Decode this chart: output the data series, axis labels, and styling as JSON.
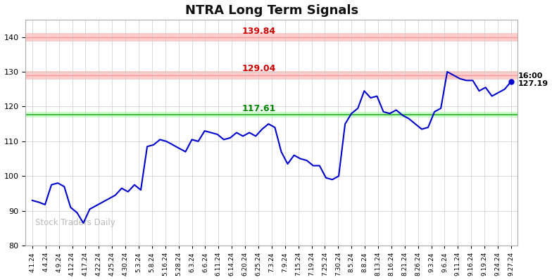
{
  "title": "NTRA Long Term Signals",
  "watermark": "Stock Traders Daily",
  "hline_green": 117.61,
  "hline_red1": 129.04,
  "hline_red2": 139.84,
  "line_color": "#0000cc",
  "last_price": 127.19,
  "last_time": "16:00",
  "ylim": [
    80,
    145
  ],
  "yticks": [
    80,
    90,
    100,
    110,
    120,
    130,
    140
  ],
  "band_half_red": 1.2,
  "band_half_green": 0.8,
  "x_labels": [
    "4.1.24",
    "4.4.24",
    "4.9.24",
    "4.12.24",
    "4.17.24",
    "4.22.24",
    "4.25.24",
    "4.30.24",
    "5.3.24",
    "5.8.24",
    "5.16.24",
    "5.28.24",
    "6.3.24",
    "6.6.24",
    "6.11.24",
    "6.14.24",
    "6.20.24",
    "6.25.24",
    "7.3.24",
    "7.9.24",
    "7.15.24",
    "7.19.24",
    "7.25.24",
    "7.30.24",
    "8.5.24",
    "8.8.24",
    "8.13.24",
    "8.16.24",
    "8.21.24",
    "8.26.24",
    "9.3.24",
    "9.6.24",
    "9.11.24",
    "9.16.24",
    "9.19.24",
    "9.24.24",
    "9.27.24"
  ],
  "prices_detailed": [
    93.0,
    92.5,
    91.8,
    97.5,
    98.0,
    97.0,
    91.0,
    89.5,
    86.5,
    90.5,
    91.5,
    92.5,
    93.5,
    94.5,
    96.5,
    95.5,
    97.5,
    96.0,
    108.5,
    109.0,
    110.5,
    110.0,
    109.0,
    108.0,
    107.0,
    110.5,
    110.0,
    113.0,
    112.5,
    112.0,
    110.5,
    111.0,
    112.5,
    111.5,
    112.5,
    111.5,
    113.5,
    115.0,
    114.0,
    107.0,
    103.5,
    106.0,
    105.0,
    104.5,
    103.0,
    103.0,
    99.5,
    99.0,
    100.0,
    115.0,
    118.0,
    119.5,
    124.5,
    122.5,
    123.0,
    118.5,
    118.0,
    119.0,
    117.5,
    116.5,
    115.0,
    113.5,
    114.0,
    118.5,
    119.5,
    130.0,
    129.0,
    128.0,
    127.5,
    127.5,
    124.5,
    125.5,
    123.0,
    124.0,
    125.0,
    127.19
  ],
  "bg_color": "#ffffff",
  "grid_color": "#cccccc",
  "red_band_color": "#ffcccc",
  "green_band_color": "#ccffcc",
  "red_line_color": "#ff9999",
  "green_line_color": "#44bb44",
  "label_red_color": "#cc0000",
  "label_green_color": "#008800",
  "watermark_color": "#bbbbbb",
  "title_color": "#111111"
}
